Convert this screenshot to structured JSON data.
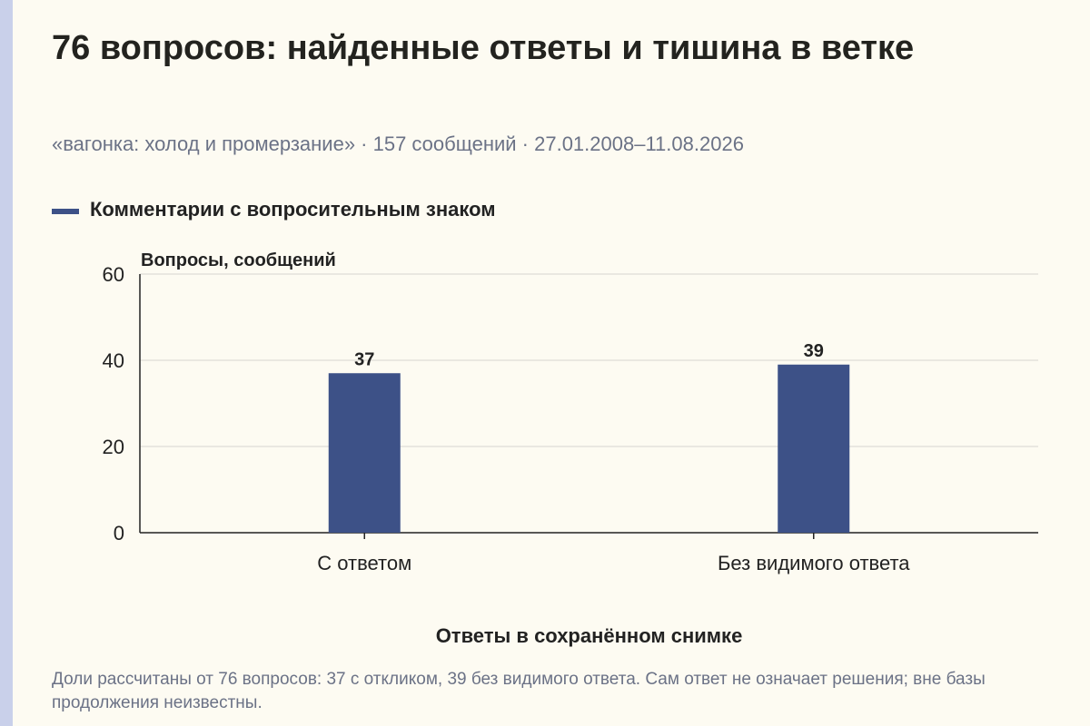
{
  "title": "76 вопросов: найденные ответы и тишина в ветке",
  "subtitle": "«вагонка: холод и промерзание» · 157 сообщений · 27.01.2008–11.08.2026",
  "footnote": "Доли рассчитаны от 76 вопросов: 37 с откликом, 39 без видимого ответа. Сам ответ не означает решения; вне базы продолжения неизвестны.",
  "colors": {
    "accent": "#3d5187",
    "stripe": "#c9d0ea",
    "background": "#fdfbf2"
  },
  "chart_data": {
    "type": "bar",
    "categories": [
      "С ответом",
      "Без видимого ответа"
    ],
    "series": [
      {
        "name": "Комментарии с вопросительным знаком",
        "values": [
          37,
          39
        ],
        "color": "#3d5187"
      }
    ],
    "xlabel": "Ответы в сохранённом снимке",
    "ylabel": "Вопросы, сообщений",
    "ylim": [
      0,
      60
    ],
    "yticks": [
      0,
      20,
      40,
      60
    ],
    "grid": true,
    "legend": "top-left",
    "data_labels": [
      "37",
      "39"
    ]
  }
}
